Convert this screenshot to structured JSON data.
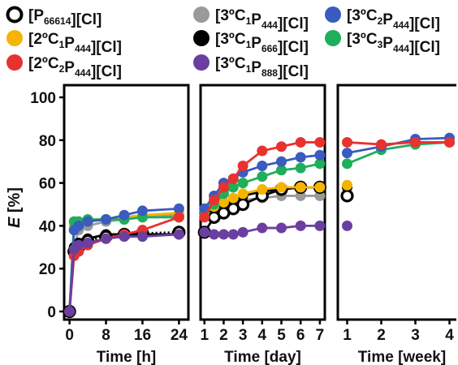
{
  "legend": [
    {
      "base": "[P",
      "sub": "66614",
      "tail": "][Cl]",
      "color": "#000000",
      "hollow": true
    },
    {
      "base": "[3ºC",
      "sub1": "1",
      "mid": "P",
      "sub2": "444",
      "tail": "][Cl]",
      "color": "#9a9a9a"
    },
    {
      "base": "[3ºC",
      "sub1": "2",
      "mid": "P",
      "sub2": "444",
      "tail": "][Cl]",
      "color": "#3a5bbf"
    },
    {
      "base": "[2ºC",
      "sub1": "1",
      "mid": "P",
      "sub2": "444",
      "tail": "][Cl]",
      "color": "#f5b400"
    },
    {
      "base": "[3ºC",
      "sub1": "1",
      "mid": "P",
      "sub2": "666",
      "tail": "][Cl]",
      "color": "#000000"
    },
    {
      "base": "[3ºC",
      "sub1": "3",
      "mid": "P",
      "sub2": "444",
      "tail": "][Cl]",
      "color": "#1fae5b"
    },
    {
      "base": "[2ºC",
      "sub1": "2",
      "mid": "P",
      "sub2": "444",
      "tail": "][Cl]",
      "color": "#e8322e"
    },
    {
      "base": "[3ºC",
      "sub1": "1",
      "mid": "P",
      "sub2": "888",
      "tail": "][Cl]",
      "color": "#6b3fa0"
    }
  ],
  "chart_data": [
    {
      "type": "line",
      "xlabel": "Time [h]",
      "ylabel_italic": "E",
      "ylabel_rest": " [%]",
      "xlim": [
        -1,
        25
      ],
      "ylim": [
        0,
        105
      ],
      "xticks": [
        0,
        8,
        16,
        24
      ],
      "yticks": [
        0,
        20,
        40,
        60,
        80,
        100
      ],
      "series": [
        {
          "key": "P66614",
          "x": [
            0,
            1,
            2,
            4,
            8,
            12,
            16,
            24
          ],
          "values": [
            0,
            28,
            30,
            33,
            35,
            36,
            36.5,
            37
          ]
        },
        {
          "key": "3C1P444",
          "x": [
            0,
            1,
            2,
            4,
            8,
            12,
            16,
            24
          ],
          "values": [
            0,
            30,
            38,
            40,
            42,
            43,
            44,
            45
          ]
        },
        {
          "key": "3C2P444",
          "x": [
            0,
            1,
            2,
            4,
            8,
            12,
            16,
            24
          ],
          "values": [
            0,
            38,
            40,
            42,
            43,
            45,
            47,
            48
          ]
        },
        {
          "key": "2C1P444",
          "x": [
            0,
            1,
            2,
            4,
            8,
            12,
            16,
            24
          ],
          "values": [
            0,
            40,
            41,
            42,
            43,
            44,
            45,
            46
          ]
        },
        {
          "key": "3C1P666",
          "x": [
            0,
            1,
            2,
            4,
            8,
            12,
            16,
            24
          ],
          "values": [
            0,
            30,
            32,
            34,
            36,
            36,
            36,
            36
          ]
        },
        {
          "key": "3C3P444",
          "x": [
            0,
            1,
            2,
            4,
            8,
            12,
            16,
            24
          ],
          "values": [
            0,
            42,
            42,
            43,
            43,
            43,
            44,
            44
          ]
        },
        {
          "key": "2C2P444",
          "x": [
            0,
            1,
            2,
            4,
            8,
            12,
            16,
            24
          ],
          "values": [
            0,
            26,
            28,
            31,
            34,
            36,
            38,
            44
          ]
        },
        {
          "key": "3C1P888",
          "x": [
            0,
            1,
            2,
            4,
            8,
            12,
            16,
            24
          ],
          "values": [
            0,
            29,
            31,
            32,
            34,
            35,
            35,
            36
          ]
        }
      ]
    },
    {
      "type": "line",
      "xlabel": "Time [day]",
      "xlim": [
        0.8,
        7.3
      ],
      "ylim": [
        0,
        105
      ],
      "xticks": [
        1,
        2,
        3,
        4,
        5,
        6,
        7
      ],
      "series": [
        {
          "key": "P66614",
          "x": [
            1,
            1.5,
            2,
            2.5,
            3,
            4,
            5,
            6,
            7
          ],
          "values": [
            37,
            44,
            46,
            48,
            50,
            54,
            57,
            58,
            58
          ]
        },
        {
          "key": "3C1P444",
          "x": [
            1,
            1.5,
            2,
            2.5,
            3,
            4,
            5,
            6,
            7
          ],
          "values": [
            46,
            48,
            50,
            51,
            52,
            53,
            54,
            54,
            54
          ]
        },
        {
          "key": "3C2P444",
          "x": [
            1,
            1.5,
            2,
            2.5,
            3,
            4,
            5,
            6,
            7
          ],
          "values": [
            48,
            54,
            60,
            62,
            65,
            68,
            70,
            72,
            73
          ]
        },
        {
          "key": "2C1P444",
          "x": [
            1,
            1.5,
            2,
            2.5,
            3,
            4,
            5,
            6,
            7
          ],
          "values": [
            46,
            49,
            51,
            53,
            55,
            57,
            58,
            58,
            58
          ]
        },
        {
          "key": "3C1P666",
          "x": [
            1,
            1.5,
            2,
            2.5,
            3,
            4,
            5,
            6,
            7
          ],
          "values": [
            46,
            48,
            50,
            52,
            54,
            56,
            57,
            58,
            58
          ]
        },
        {
          "key": "3C3P444",
          "x": [
            1,
            1.5,
            2,
            2.5,
            3,
            4,
            5,
            6,
            7
          ],
          "values": [
            46,
            50,
            55,
            58,
            60,
            63,
            66,
            67,
            69
          ]
        },
        {
          "key": "2C2P444",
          "x": [
            1,
            1.5,
            2,
            2.5,
            3,
            4,
            5,
            6,
            7
          ],
          "values": [
            44,
            52,
            58,
            62,
            68,
            75,
            77,
            79,
            79
          ]
        },
        {
          "key": "3C1P888",
          "x": [
            1,
            1.5,
            2,
            2.5,
            3,
            4,
            5,
            6,
            7
          ],
          "values": [
            37,
            36,
            36,
            36,
            37,
            39,
            39,
            40,
            40
          ]
        }
      ]
    },
    {
      "type": "line",
      "xlabel": "Time [week]",
      "xlim": [
        0.75,
        4.25
      ],
      "ylim": [
        0,
        105
      ],
      "xticks": [
        1,
        2,
        3,
        4
      ],
      "series": [
        {
          "key": "P66614",
          "x": [
            1
          ],
          "values": [
            54
          ]
        },
        {
          "key": "3C1P444",
          "x": [
            1
          ],
          "values": [
            54
          ]
        },
        {
          "key": "3C2P444",
          "x": [
            1,
            2,
            3,
            4
          ],
          "values": [
            74,
            77,
            80.5,
            81
          ]
        },
        {
          "key": "2C1P444",
          "x": [
            1
          ],
          "values": [
            59
          ]
        },
        {
          "key": "3C1P666",
          "x": [
            1
          ],
          "values": [
            58
          ]
        },
        {
          "key": "3C3P444",
          "x": [
            1,
            2,
            3,
            4
          ],
          "values": [
            69,
            75.5,
            78,
            79
          ]
        },
        {
          "key": "2C2P444",
          "x": [
            1,
            2,
            3,
            4
          ],
          "values": [
            79,
            78,
            79,
            79
          ]
        },
        {
          "key": "3C1P888",
          "x": [
            1
          ],
          "values": [
            40
          ]
        }
      ]
    }
  ]
}
